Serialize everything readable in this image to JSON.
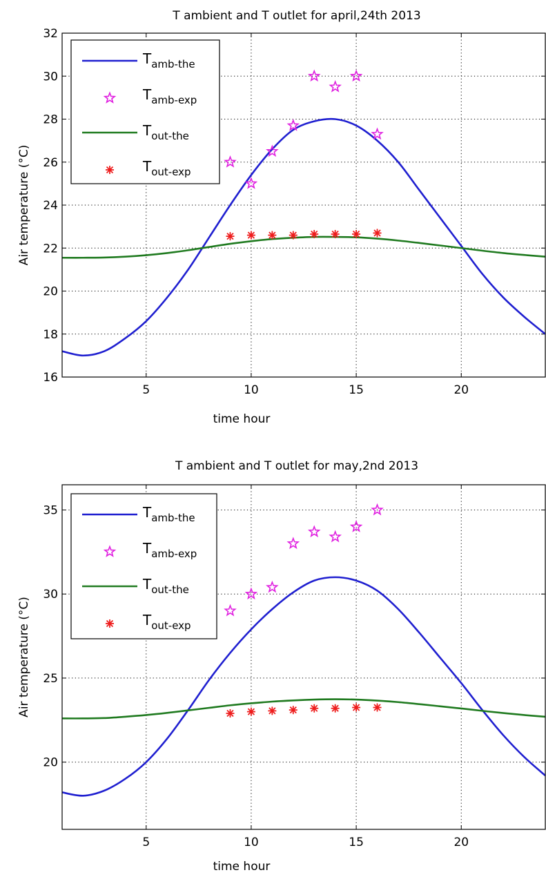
{
  "chart_data": [
    {
      "type": "line",
      "title": "T ambient and T outlet for april,24th 2013",
      "xlabel": "time hour",
      "ylabel": "Air temperature (°C)",
      "xlim": [
        1,
        24
      ],
      "ylim": [
        16,
        32
      ],
      "xticks": [
        5,
        10,
        15,
        20
      ],
      "yticks": [
        16,
        18,
        20,
        22,
        24,
        26,
        28,
        30,
        32
      ],
      "grid": true,
      "legend_position": "top-left",
      "series": [
        {
          "name": "T",
          "sub": "amb-the",
          "kind": "line",
          "color": "#1f1fd0",
          "x": [
            1,
            2,
            3,
            4,
            5,
            6,
            7,
            8,
            9,
            10,
            11,
            12,
            13,
            14,
            15,
            16,
            17,
            18,
            19,
            20,
            21,
            22,
            23,
            24
          ],
          "y": [
            17.2,
            17.0,
            17.2,
            17.8,
            18.6,
            19.7,
            21.0,
            22.5,
            24.0,
            25.4,
            26.6,
            27.5,
            27.9,
            28.0,
            27.7,
            27.0,
            26.0,
            24.7,
            23.4,
            22.1,
            20.8,
            19.7,
            18.8,
            18.0
          ]
        },
        {
          "name": "T",
          "sub": "amb-exp",
          "kind": "marker",
          "marker": "pentagram",
          "color": "#e020e0",
          "x": [
            9,
            10,
            11,
            12,
            13,
            14,
            15,
            16
          ],
          "y": [
            26.0,
            25.0,
            26.5,
            27.7,
            30.0,
            29.5,
            30.0,
            27.3
          ]
        },
        {
          "name": "T",
          "sub": "out-the",
          "kind": "line",
          "color": "#1f7a1f",
          "x": [
            1,
            2,
            3,
            4,
            5,
            6,
            7,
            8,
            9,
            10,
            11,
            12,
            13,
            14,
            15,
            16,
            17,
            18,
            19,
            20,
            21,
            22,
            23,
            24
          ],
          "y": [
            21.55,
            21.55,
            21.56,
            21.6,
            21.67,
            21.77,
            21.9,
            22.05,
            22.2,
            22.32,
            22.42,
            22.48,
            22.52,
            22.52,
            22.5,
            22.44,
            22.35,
            22.24,
            22.12,
            22.0,
            21.88,
            21.77,
            21.68,
            21.6
          ]
        },
        {
          "name": "T",
          "sub": "out-exp",
          "kind": "marker",
          "marker": "asterisk",
          "color": "#ee1c1c",
          "x": [
            9,
            10,
            11,
            12,
            13,
            14,
            15,
            16
          ],
          "y": [
            22.55,
            22.6,
            22.6,
            22.6,
            22.65,
            22.65,
            22.65,
            22.7
          ]
        }
      ]
    },
    {
      "type": "line",
      "title": "T ambient and T outlet for may,2nd 2013",
      "xlabel": "time hour",
      "ylabel": "Air temperature (°C)",
      "xlim": [
        1,
        24
      ],
      "ylim": [
        16,
        36.5
      ],
      "xticks": [
        5,
        10,
        15,
        20
      ],
      "yticks": [
        20,
        25,
        30,
        35
      ],
      "grid": true,
      "legend_position": "top-left",
      "series": [
        {
          "name": "T",
          "sub": "amb-the",
          "kind": "line",
          "color": "#1f1fd0",
          "x": [
            1,
            2,
            3,
            4,
            5,
            6,
            7,
            8,
            9,
            10,
            11,
            12,
            13,
            14,
            15,
            16,
            17,
            18,
            19,
            20,
            21,
            22,
            23,
            24
          ],
          "y": [
            18.2,
            18.0,
            18.3,
            19.0,
            20.0,
            21.4,
            23.1,
            24.9,
            26.5,
            27.9,
            29.1,
            30.1,
            30.8,
            31.0,
            30.8,
            30.2,
            29.1,
            27.7,
            26.2,
            24.7,
            23.1,
            21.6,
            20.3,
            19.2
          ]
        },
        {
          "name": "T",
          "sub": "amb-exp",
          "kind": "marker",
          "marker": "pentagram",
          "color": "#e020e0",
          "x": [
            9,
            10,
            11,
            12,
            13,
            14,
            15,
            16
          ],
          "y": [
            29.0,
            30.0,
            30.4,
            33.0,
            33.7,
            33.4,
            34.0,
            35.0
          ]
        },
        {
          "name": "T",
          "sub": "out-the",
          "kind": "line",
          "color": "#1f7a1f",
          "x": [
            1,
            2,
            3,
            4,
            5,
            6,
            7,
            8,
            9,
            10,
            11,
            12,
            13,
            14,
            15,
            16,
            17,
            18,
            19,
            20,
            21,
            22,
            23,
            24
          ],
          "y": [
            22.6,
            22.6,
            22.62,
            22.7,
            22.8,
            22.93,
            23.08,
            23.23,
            23.38,
            23.5,
            23.6,
            23.67,
            23.72,
            23.74,
            23.72,
            23.66,
            23.57,
            23.45,
            23.32,
            23.19,
            23.05,
            22.92,
            22.8,
            22.7
          ]
        },
        {
          "name": "T",
          "sub": "out-exp",
          "kind": "marker",
          "marker": "asterisk",
          "color": "#ee1c1c",
          "x": [
            9,
            10,
            11,
            12,
            13,
            14,
            15,
            16
          ],
          "y": [
            22.9,
            23.0,
            23.05,
            23.1,
            23.2,
            23.2,
            23.25,
            23.25
          ]
        }
      ]
    }
  ]
}
